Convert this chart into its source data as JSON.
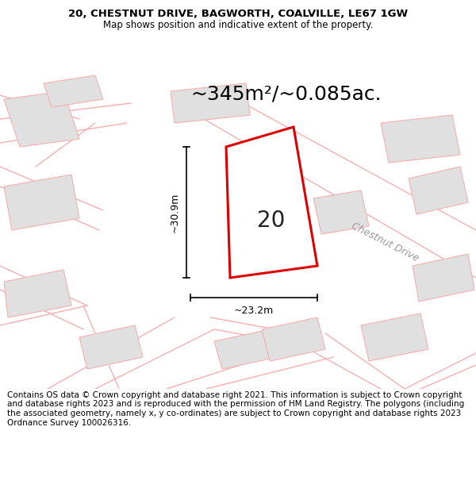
{
  "title_line1": "20, CHESTNUT DRIVE, BAGWORTH, COALVILLE, LE67 1GW",
  "title_line2": "Map shows position and indicative extent of the property.",
  "area_text": "~345m²/~0.085ac.",
  "number_label": "20",
  "dim_width": "~23.2m",
  "dim_height": "~30.9m",
  "road_label": "Chestnut Drive",
  "footer_text": "Contains OS data © Crown copyright and database right 2021. This information is subject to Crown copyright and database rights 2023 and is reproduced with the permission of HM Land Registry. The polygons (including the associated geometry, namely x, y co-ordinates) are subject to Crown copyright and database rights 2023 Ordnance Survey 100026316.",
  "bg_color": "#ffffff",
  "map_bg": "#ffffff",
  "plot_fill": "#ffffff",
  "plot_edge": "#dd0000",
  "building_fill": "#e0e0e0",
  "building_edge": "#f5b0b0",
  "road_color": "#f5b0b0",
  "dim_color": "#000000",
  "text_color": "#000000",
  "title_fontsize": 9.5,
  "subtitle_fontsize": 8.5,
  "area_fontsize": 18,
  "number_fontsize": 20,
  "dim_fontsize": 9,
  "road_fontsize": 9,
  "footer_fontsize": 7.5
}
